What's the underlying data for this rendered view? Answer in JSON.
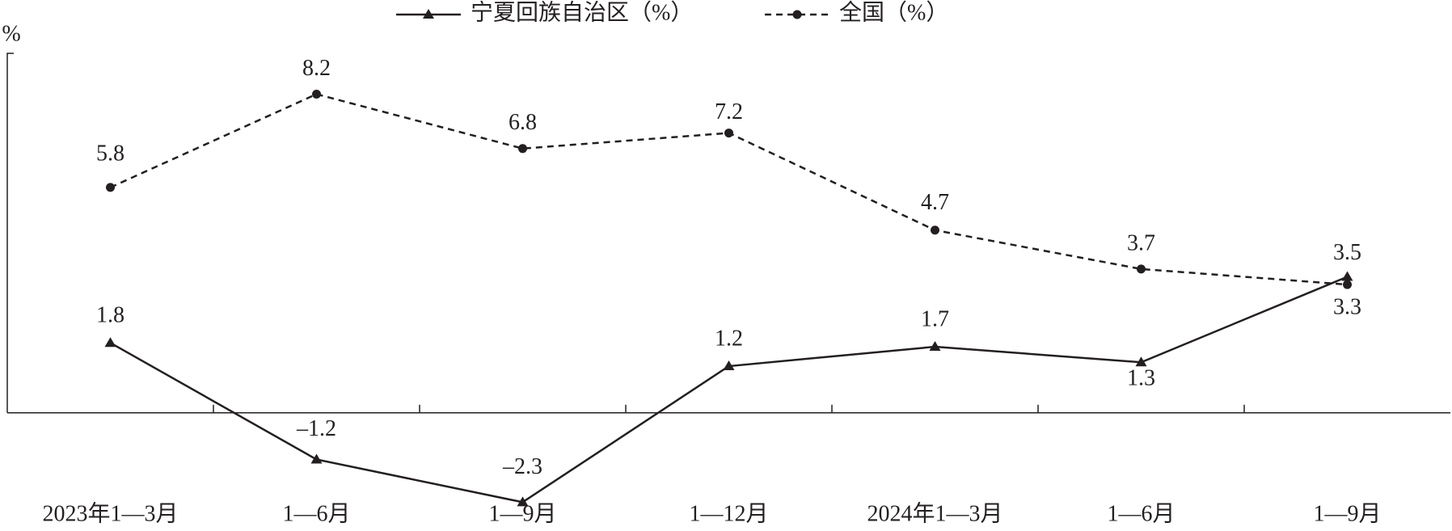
{
  "chart_data": {
    "type": "line",
    "y_label": "%",
    "categories": [
      "2023年1—3月",
      "1—6月",
      "1—9月",
      "1—12月",
      "2024年1—3月",
      "1—6月",
      "1—9月"
    ],
    "series": [
      {
        "name": "宁夏回族自治区（%）",
        "color": "#231f20",
        "line_style": "solid",
        "marker": "triangle",
        "values": [
          1.8,
          -1.2,
          -2.3,
          1.2,
          1.7,
          1.3,
          3.5
        ]
      },
      {
        "name": "全国（%）",
        "color": "#231f20",
        "line_style": "dashed",
        "marker": "circle",
        "values": [
          5.8,
          8.2,
          6.8,
          7.2,
          4.7,
          3.7,
          3.3
        ]
      }
    ],
    "ylim": [
      -3,
      9.25
    ]
  }
}
